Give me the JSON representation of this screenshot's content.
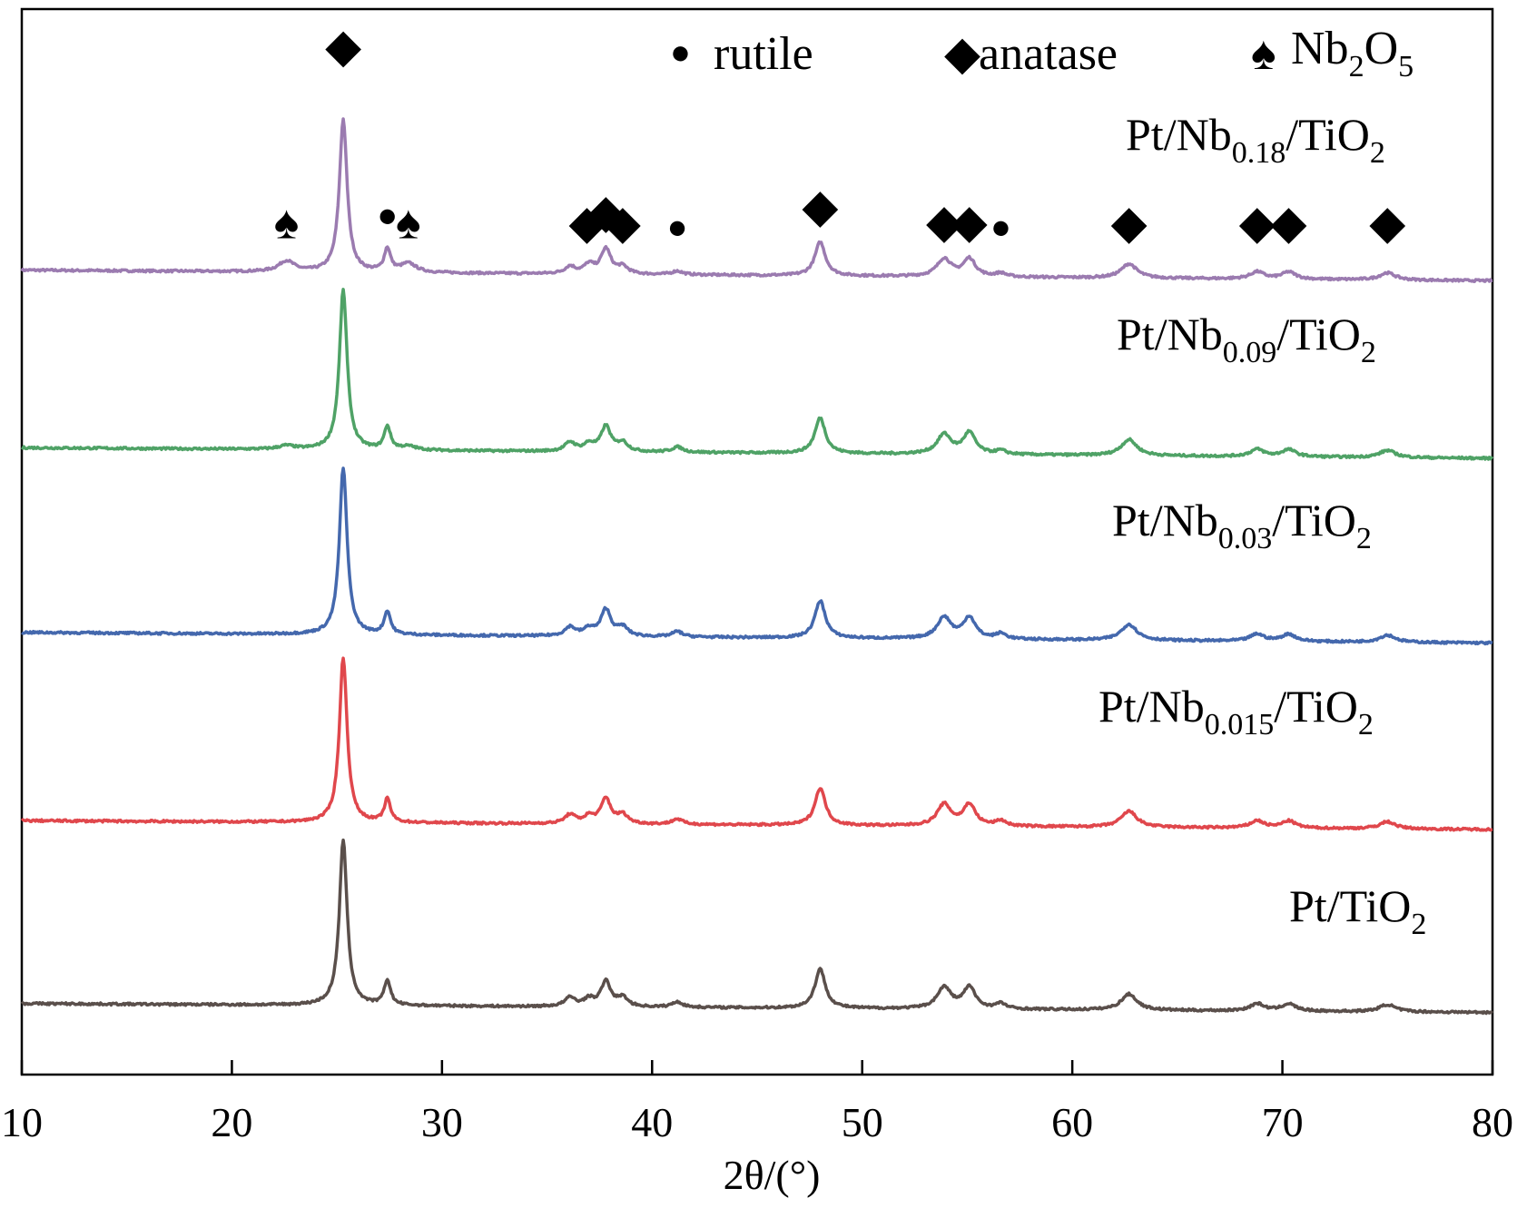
{
  "chart_data": {
    "type": "line",
    "title": "",
    "xlabel": "2θ/(°)",
    "ylabel": "",
    "xlim": [
      10,
      80
    ],
    "ylim": [
      0,
      6.0
    ],
    "x_ticks": [
      "10",
      "20",
      "30",
      "40",
      "50",
      "60",
      "70",
      "80"
    ],
    "legend": [
      {
        "symbol": "●",
        "symbol_name": "circle-marker",
        "label": "rutile"
      },
      {
        "symbol": "◆",
        "symbol_name": "diamond-marker",
        "label": "anatase"
      },
      {
        "symbol": "♠",
        "symbol_name": "spade-marker",
        "label_main": "Nb",
        "label_sub1": "2",
        "label_mid": "O",
        "label_sub2": "5"
      }
    ],
    "anatase_peaks": [
      25.3,
      36.9,
      37.8,
      38.6,
      48.0,
      53.9,
      55.1,
      62.7,
      68.8,
      70.3,
      75.0
    ],
    "rutile_peaks": [
      27.4,
      41.2,
      56.6
    ],
    "nb2o5_peaks": [
      22.6,
      28.4
    ],
    "series": [
      {
        "name": "Pt/Nb0.18/TiO2",
        "label_main": "Pt/Nb",
        "label_sub": "0.18",
        "label_end": "/TiO",
        "label_sub2": "2",
        "color": "#9b7bb0",
        "baseline": 4.53,
        "slope": -0.06,
        "peaks": [
          [
            22.6,
            0.06,
            0.45
          ],
          [
            25.3,
            0.86,
            0.22
          ],
          [
            27.4,
            0.13,
            0.18
          ],
          [
            28.4,
            0.05,
            0.45
          ],
          [
            36.1,
            0.04,
            0.3
          ],
          [
            37.0,
            0.05,
            0.3
          ],
          [
            37.8,
            0.14,
            0.28
          ],
          [
            38.6,
            0.04,
            0.3
          ],
          [
            41.2,
            0.02,
            0.3
          ],
          [
            48.0,
            0.19,
            0.3
          ],
          [
            53.9,
            0.1,
            0.4
          ],
          [
            55.1,
            0.1,
            0.35
          ],
          [
            56.6,
            0.02,
            0.3
          ],
          [
            62.7,
            0.08,
            0.45
          ],
          [
            68.8,
            0.04,
            0.4
          ],
          [
            70.3,
            0.04,
            0.4
          ],
          [
            75.0,
            0.04,
            0.45
          ]
        ],
        "annotations": [
          {
            "symbol": "♠",
            "x": 22.6
          },
          {
            "symbol": "◆",
            "x": 25.3
          },
          {
            "symbol": "●",
            "x": 27.4
          },
          {
            "symbol": "♠",
            "x": 28.4
          },
          {
            "symbol": "◆",
            "x": 36.9
          },
          {
            "symbol": "◆",
            "x": 37.8
          },
          {
            "symbol": "◆",
            "x": 38.6
          },
          {
            "symbol": "●",
            "x": 41.2
          },
          {
            "symbol": "◆",
            "x": 48.0
          },
          {
            "symbol": "◆",
            "x": 53.9
          },
          {
            "symbol": "◆",
            "x": 55.1
          },
          {
            "symbol": "●",
            "x": 56.6
          },
          {
            "symbol": "◆",
            "x": 62.7
          },
          {
            "symbol": "◆",
            "x": 68.8
          },
          {
            "symbol": "◆",
            "x": 70.3
          },
          {
            "symbol": "◆",
            "x": 75.0
          }
        ]
      },
      {
        "name": "Pt/Nb0.09/TiO2",
        "label_main": "Pt/Nb",
        "label_sub": "0.09",
        "label_end": "/TiO",
        "label_sub2": "2",
        "color": "#4fa266",
        "baseline": 3.53,
        "slope": -0.06,
        "peaks": [
          [
            22.6,
            0.02,
            0.45
          ],
          [
            25.3,
            0.9,
            0.22
          ],
          [
            27.4,
            0.13,
            0.18
          ],
          [
            28.4,
            0.02,
            0.45
          ],
          [
            36.1,
            0.05,
            0.3
          ],
          [
            37.0,
            0.04,
            0.3
          ],
          [
            37.8,
            0.14,
            0.28
          ],
          [
            38.6,
            0.05,
            0.3
          ],
          [
            41.2,
            0.03,
            0.3
          ],
          [
            48.0,
            0.2,
            0.3
          ],
          [
            53.9,
            0.11,
            0.4
          ],
          [
            55.1,
            0.12,
            0.35
          ],
          [
            56.6,
            0.02,
            0.3
          ],
          [
            62.7,
            0.09,
            0.45
          ],
          [
            68.8,
            0.04,
            0.4
          ],
          [
            70.3,
            0.04,
            0.4
          ],
          [
            75.0,
            0.04,
            0.45
          ]
        ]
      },
      {
        "name": "Pt/Nb0.03/TiO2",
        "label_main": "Pt/Nb",
        "label_sub": "0.03",
        "label_end": "/TiO",
        "label_sub2": "2",
        "color": "#4468ad",
        "baseline": 2.49,
        "slope": -0.06,
        "peaks": [
          [
            25.3,
            0.94,
            0.22
          ],
          [
            27.4,
            0.13,
            0.18
          ],
          [
            36.1,
            0.05,
            0.3
          ],
          [
            37.0,
            0.04,
            0.3
          ],
          [
            37.8,
            0.15,
            0.28
          ],
          [
            38.6,
            0.05,
            0.3
          ],
          [
            41.2,
            0.03,
            0.3
          ],
          [
            48.0,
            0.21,
            0.3
          ],
          [
            53.9,
            0.12,
            0.4
          ],
          [
            55.1,
            0.12,
            0.35
          ],
          [
            56.6,
            0.03,
            0.3
          ],
          [
            62.7,
            0.09,
            0.45
          ],
          [
            68.8,
            0.04,
            0.4
          ],
          [
            70.3,
            0.04,
            0.4
          ],
          [
            75.0,
            0.04,
            0.45
          ]
        ]
      },
      {
        "name": "Pt/Nb0.015/TiO2",
        "label_main": "Pt/Nb",
        "label_sub": "0.015",
        "label_end": "/TiO",
        "label_sub2": "2",
        "color": "#e0474c",
        "baseline": 1.43,
        "slope": -0.05,
        "peaks": [
          [
            25.3,
            0.93,
            0.22
          ],
          [
            27.4,
            0.13,
            0.18
          ],
          [
            36.1,
            0.05,
            0.3
          ],
          [
            37.0,
            0.04,
            0.3
          ],
          [
            37.8,
            0.14,
            0.28
          ],
          [
            38.6,
            0.05,
            0.3
          ],
          [
            41.2,
            0.03,
            0.3
          ],
          [
            48.0,
            0.21,
            0.3
          ],
          [
            53.9,
            0.12,
            0.4
          ],
          [
            55.1,
            0.12,
            0.35
          ],
          [
            56.6,
            0.03,
            0.3
          ],
          [
            62.7,
            0.09,
            0.45
          ],
          [
            68.8,
            0.04,
            0.4
          ],
          [
            70.3,
            0.04,
            0.4
          ],
          [
            75.0,
            0.04,
            0.45
          ]
        ]
      },
      {
        "name": "Pt/TiO2",
        "label_main": "Pt/TiO",
        "label_sub": "",
        "label_end": "",
        "label_sub2": "2",
        "color": "#5a4f4b",
        "baseline": 0.4,
        "slope": -0.05,
        "peaks": [
          [
            25.3,
            0.93,
            0.22
          ],
          [
            27.4,
            0.14,
            0.18
          ],
          [
            36.1,
            0.05,
            0.3
          ],
          [
            37.0,
            0.04,
            0.3
          ],
          [
            37.8,
            0.14,
            0.28
          ],
          [
            38.6,
            0.05,
            0.3
          ],
          [
            41.2,
            0.03,
            0.3
          ],
          [
            48.0,
            0.22,
            0.3
          ],
          [
            53.9,
            0.12,
            0.4
          ],
          [
            55.1,
            0.12,
            0.35
          ],
          [
            56.6,
            0.03,
            0.3
          ],
          [
            62.7,
            0.09,
            0.45
          ],
          [
            68.8,
            0.04,
            0.4
          ],
          [
            70.3,
            0.04,
            0.4
          ],
          [
            75.0,
            0.04,
            0.45
          ]
        ]
      }
    ]
  }
}
